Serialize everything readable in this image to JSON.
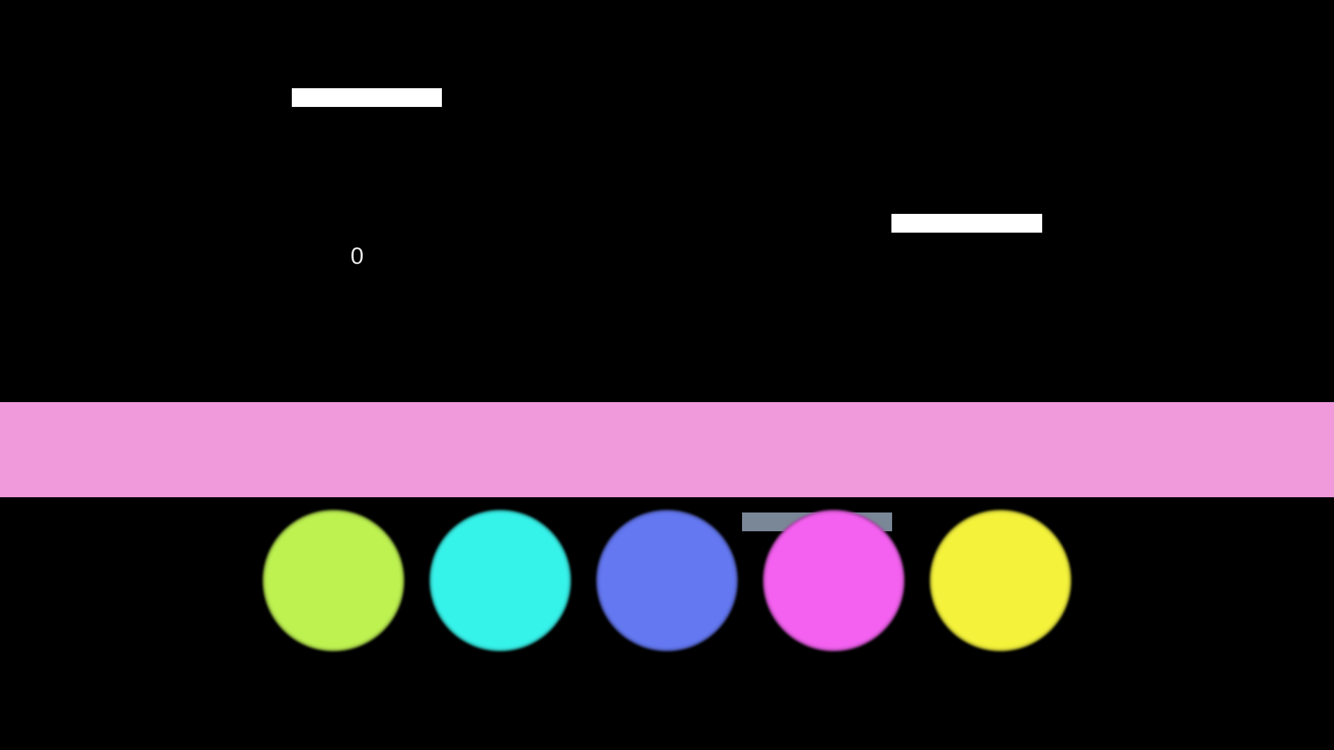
{
  "score": "0",
  "colors": {
    "background": "#000000",
    "platform": "#ffffff",
    "band": "#f09adc",
    "gray_platform": "#7a8797"
  },
  "color_buttons": [
    {
      "name": "lime",
      "color": "#bef251"
    },
    {
      "name": "cyan",
      "color": "#36f3ea"
    },
    {
      "name": "blue",
      "color": "#6478f2"
    },
    {
      "name": "magenta",
      "color": "#f461f0"
    },
    {
      "name": "yellow",
      "color": "#f4f23b"
    }
  ]
}
